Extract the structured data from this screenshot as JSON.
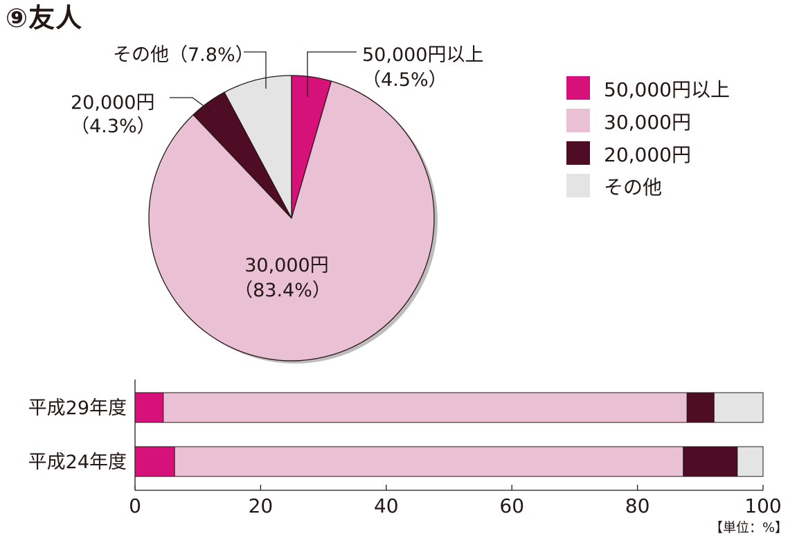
{
  "title": "⑨友人",
  "chart_data": [
    {
      "type": "pie",
      "slices": [
        {
          "label": "50,000円以上",
          "value": 4.5,
          "value_text": "（4.5%）",
          "color": "#d6127a"
        },
        {
          "label": "30,000円",
          "value": 83.4,
          "value_text": "（83.4%）",
          "color": "#eac0d4"
        },
        {
          "label": "20,000円",
          "value": 4.3,
          "value_text": "（4.3%）",
          "color": "#4f0d25"
        },
        {
          "label": "その他",
          "value": 7.8,
          "value_text": "その他（7.8%）",
          "color": "#e4e4e4"
        }
      ]
    },
    {
      "type": "bar",
      "orientation": "horizontal",
      "stacked": true,
      "categories": [
        "平成29年度",
        "平成24年度"
      ],
      "series": [
        {
          "name": "50,000円以上",
          "values": [
            4.5,
            6.3
          ]
        },
        {
          "name": "30,000円",
          "values": [
            83.4,
            81.0
          ]
        },
        {
          "name": "20,000円",
          "values": [
            4.3,
            8.6
          ]
        },
        {
          "name": "その他",
          "values": [
            7.8,
            4.1
          ]
        }
      ],
      "xlim": [
        0,
        100
      ],
      "xticks": [
        "0",
        "20",
        "40",
        "60",
        "80",
        "100"
      ],
      "unit_note": "【単位：%】",
      "legend_position": "top-right"
    }
  ]
}
